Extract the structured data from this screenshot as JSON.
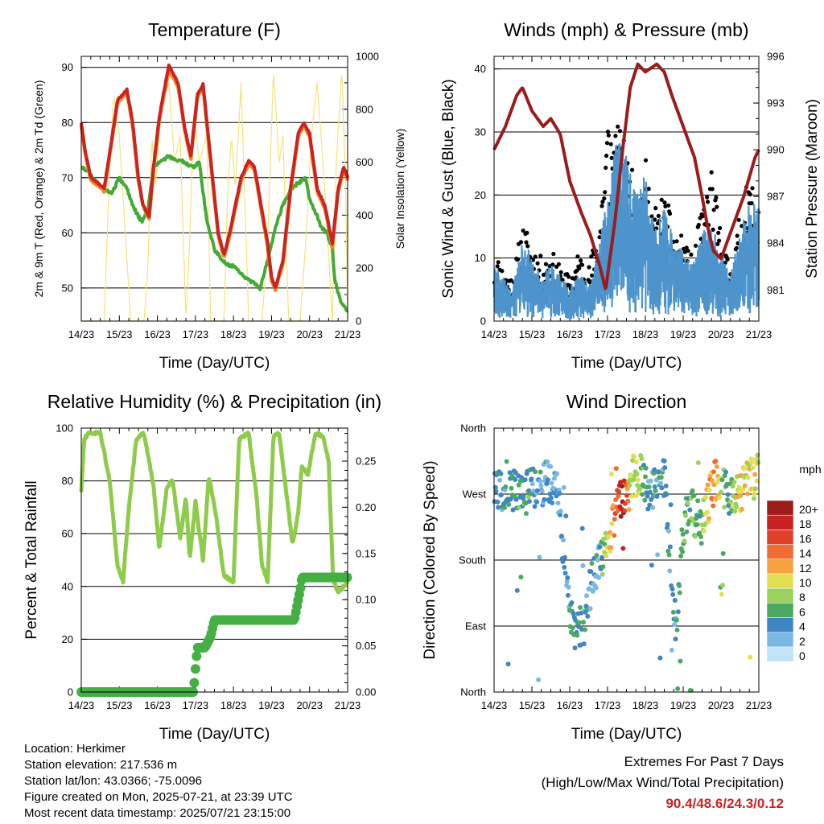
{
  "colors": {
    "temp2m": "#cc2222",
    "temp9m": "#f08a24",
    "dewpoint": "#44aa33",
    "solar": "#f7e27a",
    "wind": "#4d94cc",
    "gust": "#000000",
    "pressure": "#9b1c1c",
    "rh": "#8fcb4a",
    "precip": "#44b044",
    "extremes": "#cc2222"
  },
  "chart_data": [
    {
      "type": "line",
      "title": "Temperature (F)",
      "xlabel": "Time (Day/UTC)",
      "ylabel": "2m & 9m T (Red, Orange) & 2m Td (Green)",
      "y2label": "Solar Insolation (Yellow)",
      "x_ticks": [
        "14/23",
        "15/23",
        "16/23",
        "17/23",
        "18/23",
        "19/23",
        "20/23",
        "21/23"
      ],
      "xlim": [
        0,
        7
      ],
      "ylim": [
        44,
        92
      ],
      "y2lim": [
        0,
        1000
      ],
      "y_ticks": [
        50,
        60,
        70,
        80,
        90
      ],
      "y2_ticks": [
        0,
        200,
        400,
        600,
        800,
        1000
      ],
      "grid": "horizontal",
      "series": [
        {
          "key": "t2m",
          "x": [
            0,
            0.1,
            0.25,
            0.45,
            0.6,
            0.8,
            0.95,
            1.2,
            1.35,
            1.5,
            1.62,
            1.78,
            1.9,
            2.05,
            2.3,
            2.55,
            2.72,
            2.88,
            3.05,
            3.2,
            3.45,
            3.6,
            3.75,
            3.9,
            4.2,
            4.4,
            4.55,
            4.7,
            4.9,
            5.0,
            5.1,
            5.3,
            5.5,
            5.7,
            5.85,
            6.0,
            6.2,
            6.4,
            6.6,
            6.75,
            6.9,
            7.0
          ],
          "y": [
            80,
            75,
            70,
            69,
            68,
            77,
            84,
            86,
            80,
            70,
            65,
            63,
            72,
            81,
            90.4,
            87,
            79,
            74,
            85,
            87,
            70,
            60,
            56,
            60,
            70,
            73,
            72,
            66,
            58,
            52,
            50,
            55,
            68,
            78,
            80,
            78,
            68,
            65,
            58,
            68,
            72,
            70
          ]
        },
        {
          "key": "t9m",
          "x": [
            0,
            0.1,
            0.25,
            0.45,
            0.6,
            0.8,
            0.95,
            1.2,
            1.35,
            1.5,
            1.62,
            1.78,
            1.9,
            2.05,
            2.3,
            2.55,
            2.72,
            2.88,
            3.05,
            3.2,
            3.45,
            3.6,
            3.75,
            3.9,
            4.2,
            4.4,
            4.55,
            4.7,
            4.9,
            5.0,
            5.1,
            5.3,
            5.5,
            5.7,
            5.85,
            6.0,
            6.2,
            6.4,
            6.6,
            6.75,
            6.9,
            7.0
          ],
          "y": [
            79.5,
            74.5,
            69.5,
            68.5,
            67.5,
            76.5,
            83.5,
            85.5,
            79.5,
            69.5,
            65,
            62.5,
            71.5,
            80.5,
            89.5,
            86.5,
            78.5,
            73.5,
            84.5,
            86.5,
            69.5,
            59.5,
            55.5,
            59.5,
            69.5,
            72.5,
            71.5,
            65.5,
            57.5,
            51.5,
            49.5,
            54.5,
            67.5,
            77.5,
            79.5,
            77.5,
            67.5,
            64.5,
            57.5,
            67.5,
            71.5,
            69.5
          ]
        },
        {
          "key": "td",
          "x": [
            0,
            0.2,
            0.4,
            0.6,
            0.8,
            1.0,
            1.2,
            1.35,
            1.5,
            1.6,
            1.75,
            1.9,
            2.1,
            2.3,
            2.5,
            2.7,
            2.85,
            3.0,
            3.1,
            3.3,
            3.5,
            3.7,
            3.9,
            4.0,
            4.3,
            4.5,
            4.7,
            4.9,
            5.1,
            5.3,
            5.5,
            5.7,
            5.9,
            6.0,
            6.2,
            6.3,
            6.45,
            6.6,
            6.65,
            6.75,
            6.85,
            7.0
          ],
          "y": [
            72,
            71,
            69,
            68,
            67,
            70,
            68,
            65,
            63,
            62,
            64,
            72,
            73,
            74,
            73,
            73,
            72,
            72,
            73,
            62,
            57,
            55,
            54,
            54,
            52,
            51,
            50,
            55,
            61,
            65,
            68,
            69,
            70,
            66,
            63,
            61,
            60,
            57,
            52,
            49,
            47,
            46
          ]
        },
        {
          "key": "solar",
          "axis": "y2",
          "x": [
            0,
            0.4,
            0.6,
            0.75,
            0.85,
            1.0,
            1.3,
            1.5,
            1.65,
            1.75,
            1.85,
            1.95,
            2.1,
            2.3,
            2.45,
            2.6,
            2.75,
            2.85,
            2.95,
            3.1,
            3.3,
            3.4,
            3.6,
            3.75,
            3.85,
            3.95,
            4.05,
            4.2,
            4.4,
            4.6,
            4.75,
            4.9,
            5.05,
            5.2,
            5.3,
            5.45,
            5.6,
            5.75,
            5.9,
            6.05,
            6.2,
            6.4,
            6.6,
            6.7,
            6.85,
            6.95,
            7.0
          ],
          "y": [
            0,
            0,
            0,
            600,
            850,
            700,
            0,
            0,
            0,
            200,
            700,
            500,
            800,
            900,
            600,
            700,
            0,
            300,
            800,
            600,
            700,
            0,
            0,
            0,
            500,
            700,
            500,
            900,
            0,
            0,
            0,
            300,
            950,
            600,
            700,
            0,
            0,
            0,
            300,
            700,
            900,
            500,
            0,
            600,
            950,
            500,
            0
          ]
        }
      ]
    },
    {
      "type": "scatter",
      "title": "Winds (mph) & Pressure (mb)",
      "xlabel": "Time (Day/UTC)",
      "ylabel": "Sonic Wind & Gust (Blue, Black)",
      "y2label": "Station Pressure (Maroon)",
      "x_ticks": [
        "14/23",
        "15/23",
        "16/23",
        "17/23",
        "18/23",
        "19/23",
        "20/23",
        "21/23"
      ],
      "xlim": [
        0,
        7
      ],
      "ylim": [
        0,
        42
      ],
      "y2lim": [
        979,
        996
      ],
      "y_ticks": [
        0,
        10,
        20,
        30,
        40
      ],
      "y2_ticks": [
        981,
        984,
        987,
        990,
        993,
        996
      ],
      "grid": "horizontal",
      "series": [
        {
          "key": "wind",
          "x": [
            0,
            0.25,
            0.5,
            0.75,
            1.0,
            1.25,
            1.5,
            1.75,
            2.0,
            2.25,
            2.5,
            2.75,
            3.0,
            3.25,
            3.5,
            3.75,
            4.0,
            4.25,
            4.5,
            4.75,
            5.0,
            5.25,
            5.5,
            5.75,
            6.0,
            6.25,
            6.5,
            6.75,
            7.0
          ],
          "y": [
            5,
            4,
            3,
            7,
            6,
            4,
            5,
            4,
            3,
            5,
            3,
            6,
            12,
            16,
            15,
            11,
            13,
            9,
            10,
            8,
            6,
            5,
            8,
            9,
            6,
            4,
            8,
            11,
            10
          ]
        },
        {
          "key": "gust",
          "x": [
            0,
            0.25,
            0.5,
            0.75,
            1.0,
            1.25,
            1.5,
            1.75,
            2.0,
            2.25,
            2.5,
            2.75,
            3.0,
            3.25,
            3.5,
            3.75,
            4.0,
            4.25,
            4.5,
            4.75,
            5.0,
            5.25,
            5.5,
            5.75,
            6.0,
            6.25,
            6.5,
            6.75,
            7.0
          ],
          "y": [
            8,
            6,
            5,
            11,
            9,
            7,
            8,
            6,
            5,
            8,
            6,
            11,
            24.3,
            22,
            19,
            15,
            18,
            13,
            14,
            11,
            9,
            7,
            13,
            17,
            10,
            6,
            12,
            16,
            15
          ]
        },
        {
          "key": "pressure",
          "axis": "y2",
          "x": [
            0,
            0.3,
            0.6,
            0.75,
            1.0,
            1.3,
            1.5,
            1.75,
            2.0,
            2.3,
            2.55,
            2.8,
            2.95,
            3.2,
            3.4,
            3.6,
            3.8,
            4.0,
            4.3,
            4.5,
            4.7,
            5.0,
            5.3,
            5.5,
            5.65,
            5.8,
            6.0,
            6.3,
            6.6,
            6.9,
            7.0
          ],
          "y": [
            990,
            991.5,
            993.5,
            994,
            992.5,
            991.5,
            992,
            991,
            988,
            986,
            984.5,
            982.5,
            981,
            985.5,
            990,
            994,
            995.5,
            995,
            995.5,
            995,
            993.5,
            991.5,
            989.5,
            987,
            985,
            983.5,
            983,
            985,
            987,
            989.5,
            990
          ]
        }
      ]
    },
    {
      "type": "line",
      "title": "Relative Humidity (%) & Precipitation (in)",
      "xlabel": "Time (Day/UTC)",
      "ylabel": "Percent & Total Rainfall",
      "x_ticks": [
        "14/23",
        "15/23",
        "16/23",
        "17/23",
        "18/23",
        "19/23",
        "20/23",
        "21/23"
      ],
      "xlim": [
        0,
        7
      ],
      "ylim": [
        0,
        100
      ],
      "y2lim": [
        0,
        0.28571
      ],
      "y_ticks": [
        0,
        20,
        40,
        60,
        80,
        100
      ],
      "y2_ticks": [
        "0.00",
        "0.05",
        "0.10",
        "0.15",
        "0.20",
        "0.25"
      ],
      "grid": "horizontal",
      "series": [
        {
          "key": "rh",
          "x": [
            0,
            0.08,
            0.2,
            0.5,
            0.75,
            0.95,
            1.1,
            1.25,
            1.45,
            1.65,
            1.9,
            2.05,
            2.25,
            2.4,
            2.6,
            2.75,
            2.85,
            3.0,
            3.2,
            3.35,
            3.55,
            3.75,
            4.0,
            4.15,
            4.4,
            4.6,
            4.75,
            4.9,
            5.05,
            5.2,
            5.35,
            5.55,
            5.7,
            5.8,
            5.95,
            6.15,
            6.35,
            6.5,
            6.62,
            6.75,
            6.9,
            7.0
          ],
          "y": [
            76,
            96,
            98,
            98,
            80,
            48,
            42,
            70,
            96,
            98,
            78,
            54,
            78,
            80,
            58,
            74,
            50,
            72,
            50,
            82,
            66,
            44,
            42,
            96,
            98,
            75,
            48,
            42,
            97,
            98,
            80,
            56,
            68,
            86,
            82,
            98,
            97,
            88,
            42,
            38,
            40,
            42
          ]
        },
        {
          "key": "precip",
          "axis": "y2",
          "x": [
            0,
            1.0,
            2.0,
            2.95,
            3.0,
            3.05,
            3.1,
            3.25,
            3.4,
            3.5,
            3.7,
            4.0,
            5.0,
            5.5,
            5.6,
            5.75,
            5.8,
            6.0,
            6.5,
            7.0
          ],
          "y": [
            0,
            0,
            0,
            0,
            0.025,
            0.048,
            0.048,
            0.048,
            0.06,
            0.078,
            0.078,
            0.078,
            0.078,
            0.078,
            0.078,
            0.11,
            0.124,
            0.124,
            0.124,
            0.124
          ]
        }
      ]
    },
    {
      "type": "scatter",
      "title": "Wind Direction",
      "xlabel": "Time (Day/UTC)",
      "ylabel": "Direction (Colored By Speed)",
      "x_ticks": [
        "14/23",
        "15/23",
        "16/23",
        "17/23",
        "18/23",
        "19/23",
        "20/23",
        "21/23"
      ],
      "xlim": [
        0,
        7
      ],
      "ylim": [
        0,
        360
      ],
      "y_ticks": [
        "North",
        "East",
        "South",
        "West",
        "North"
      ],
      "grid": "horizontal",
      "colorbar": {
        "title": "mph",
        "labels": [
          "20+",
          "18",
          "16",
          "14",
          "12",
          "10",
          "8",
          "6",
          "4",
          "2",
          "0"
        ],
        "colors": [
          "#9c1b1b",
          "#c92121",
          "#e0402a",
          "#f26b30",
          "#f7a240",
          "#e3df52",
          "#9bd25e",
          "#4aa863",
          "#3f86c2",
          "#7ab8e4",
          "#c2e3f7"
        ]
      },
      "series": [
        {
          "key": "direction",
          "x": [
            0.2,
            0.5,
            0.8,
            1.1,
            1.4,
            1.7,
            1.9,
            2.1,
            2.4,
            2.6,
            2.8,
            3.0,
            3.2,
            3.4,
            3.6,
            3.8,
            4.0,
            4.2,
            4.5,
            4.8,
            5.0,
            5.2,
            5.5,
            5.8,
            6.0,
            6.2,
            6.5,
            6.8,
            7.0
          ],
          "y": [
            275,
            275,
            270,
            280,
            285,
            270,
            140,
            80,
            90,
            160,
            175,
            200,
            250,
            265,
            290,
            300,
            280,
            275,
            290,
            85,
            230,
            250,
            230,
            285,
            290,
            260,
            275,
            290,
            300
          ],
          "speed": [
            4,
            5,
            6,
            4,
            3,
            3,
            3,
            5,
            4,
            3,
            4,
            10,
            13,
            20,
            9,
            9,
            5,
            4,
            4,
            4,
            7,
            6,
            7,
            14,
            8,
            5,
            11,
            10,
            9
          ]
        }
      ]
    }
  ],
  "info": {
    "location": "Location: Herkimer",
    "elevation": "Station elevation: 217.536 m",
    "latlon": "Station lat/lon: 43.0366; -75.0096",
    "created": "Figure created on Mon, 2025-07-21, at 23:39 UTC",
    "recent": "Most recent data timestamp: 2025/07/21 23:15:00"
  },
  "extremes": {
    "line1": "Extremes For Past 7 Days",
    "line2": "(High/Low/Max Wind/Total Precipitation)",
    "values": "90.4/48.6/24.3/0.12"
  }
}
